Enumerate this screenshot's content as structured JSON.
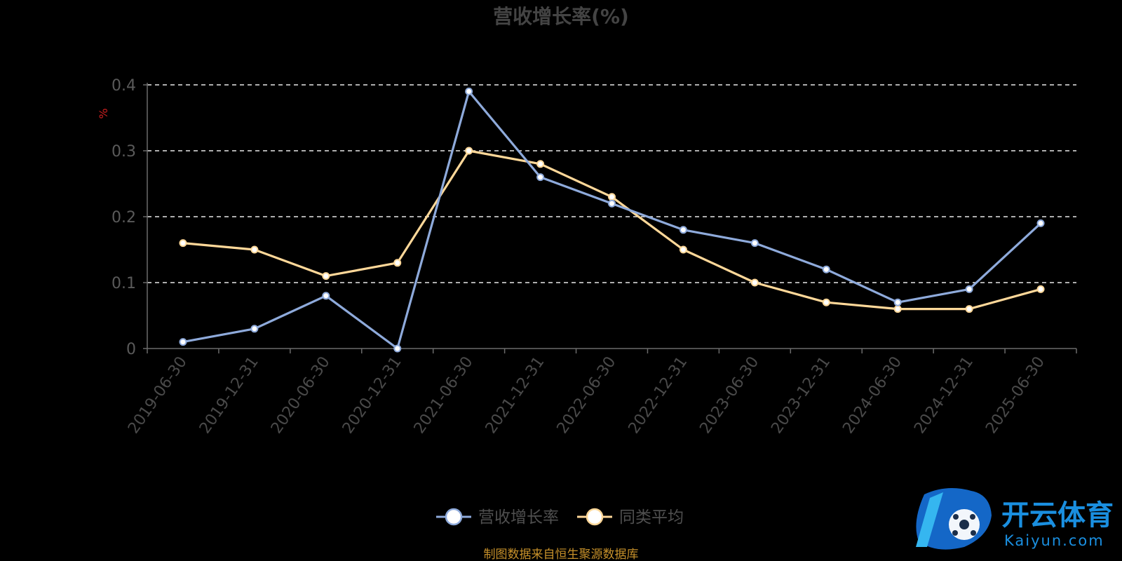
{
  "chart_data": {
    "type": "line",
    "title": "营收增长率(%)",
    "ylabel": "%",
    "xlabel": "",
    "ylim": [
      0,
      0.4
    ],
    "yticks": [
      "0",
      "0.1",
      "0.2",
      "0.3",
      "0.4"
    ],
    "grid": true,
    "legend_position": "bottom",
    "categories": [
      "2019-06-30",
      "2019-12-31",
      "2020-06-30",
      "2020-12-31",
      "2021-06-30",
      "2021-12-31",
      "2022-06-30",
      "2022-12-31",
      "2023-06-30",
      "2023-12-31",
      "2024-06-30",
      "2024-12-31",
      "2025-06-30"
    ],
    "series": [
      {
        "name": "营收增长率",
        "color": "#8eaadb",
        "values": [
          0.01,
          0.03,
          0.08,
          0.0,
          0.39,
          0.26,
          0.22,
          0.18,
          0.16,
          0.12,
          0.07,
          0.09,
          0.19
        ]
      },
      {
        "name": "同类平均",
        "color": "#ffd899",
        "values": [
          0.16,
          0.15,
          0.11,
          0.13,
          0.3,
          0.28,
          0.23,
          0.15,
          0.1,
          0.07,
          0.06,
          0.06,
          0.09
        ]
      }
    ]
  },
  "source_note": "制图数据来自恒生聚源数据库",
  "watermark": {
    "cn": "开云体育",
    "en": "Kaiyun.com"
  }
}
